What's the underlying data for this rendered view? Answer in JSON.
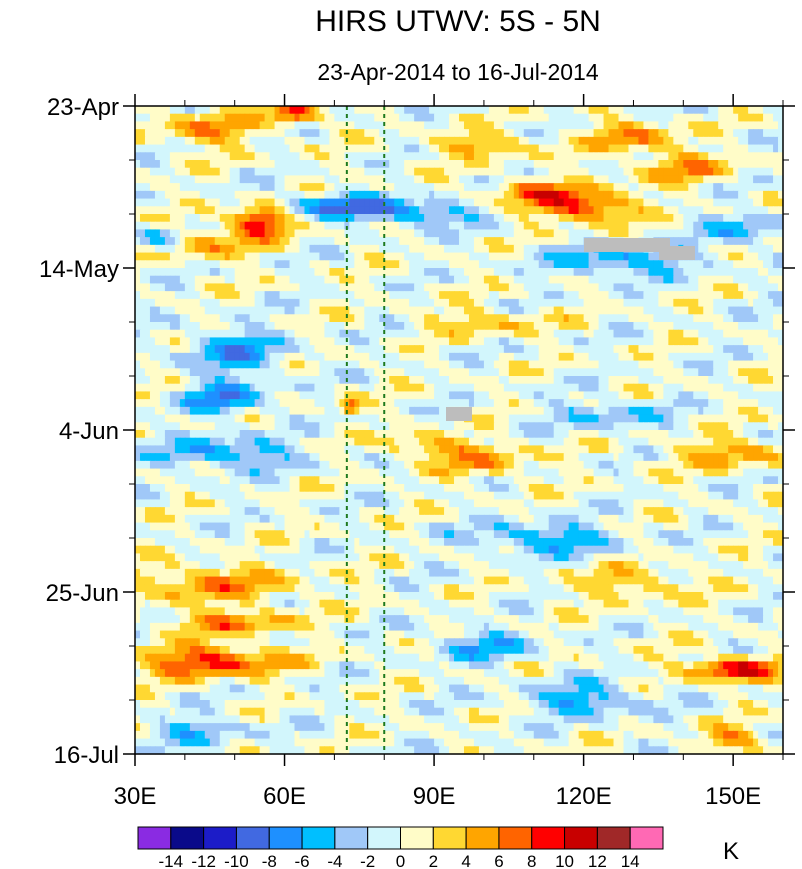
{
  "chart_data": {
    "type": "heatmap",
    "title": "HIRS UTWV: 5S - 5N",
    "subtitle": "23-Apr-2014 to 16-Jul-2014",
    "xlabel": "",
    "ylabel": "",
    "xlim": [
      30,
      160
    ],
    "ylim_days": [
      0,
      84
    ],
    "x_ticks": [
      {
        "value": 30,
        "label": "30E"
      },
      {
        "value": 60,
        "label": "60E"
      },
      {
        "value": 90,
        "label": "90E"
      },
      {
        "value": 120,
        "label": "120E"
      },
      {
        "value": 150,
        "label": "150E"
      }
    ],
    "y_ticks": [
      {
        "day": 0,
        "label": "23-Apr"
      },
      {
        "day": 21,
        "label": "14-May"
      },
      {
        "day": 42,
        "label": "4-Jun"
      },
      {
        "day": 63,
        "label": "25-Jun"
      },
      {
        "day": 84,
        "label": "16-Jul"
      }
    ],
    "reference_lines_lon": [
      72.5,
      80
    ],
    "colorbar": {
      "unit": "K",
      "levels": [
        -14,
        -12,
        -10,
        -8,
        -6,
        -4,
        -2,
        0,
        2,
        4,
        6,
        8,
        10,
        12,
        14
      ],
      "labels": [
        "-14",
        "-12",
        "-10",
        "-8",
        "-6",
        "-4",
        "-2",
        "0",
        "2",
        "4",
        "6",
        "8",
        "10",
        "12",
        "14"
      ],
      "colors": [
        "#8a2be2",
        "#0a0a8a",
        "#1c1cc8",
        "#4169e1",
        "#1e90ff",
        "#00bfff",
        "#a0c8f8",
        "#d2f6fc",
        "#fffcc8",
        "#ffd832",
        "#ffa500",
        "#ff6400",
        "#ff0000",
        "#c80000",
        "#a02828",
        "#ff69b4"
      ]
    },
    "features": [
      {
        "lon": 45,
        "day": 3,
        "anom": 6,
        "slon": 9,
        "sday": 2
      },
      {
        "lon": 62,
        "day": 1,
        "anom": 8,
        "slon": 5,
        "sday": 1.5
      },
      {
        "lon": 100,
        "day": 5,
        "anom": 5,
        "slon": 10,
        "sday": 1.5
      },
      {
        "lon": 130,
        "day": 4,
        "anom": 6,
        "slon": 8,
        "sday": 2
      },
      {
        "lon": 110,
        "day": 11,
        "anom": 6,
        "slon": 8,
        "sday": 1.5
      },
      {
        "lon": 120,
        "day": 13,
        "anom": 9,
        "slon": 10,
        "sday": 2
      },
      {
        "lon": 140,
        "day": 8,
        "anom": 5,
        "slon": 10,
        "sday": 2
      },
      {
        "lon": 55,
        "day": 15,
        "anom": 10,
        "slon": 6,
        "sday": 2
      },
      {
        "lon": 45,
        "day": 18,
        "anom": 5,
        "slon": 8,
        "sday": 2
      },
      {
        "lon": 72,
        "day": 13,
        "anom": -8,
        "slon": 12,
        "sday": 1.5
      },
      {
        "lon": 88,
        "day": 14,
        "anom": -6,
        "slon": 10,
        "sday": 1.5
      },
      {
        "lon": 35,
        "day": 17,
        "anom": -5,
        "slon": 5,
        "sday": 1.5
      },
      {
        "lon": 128,
        "day": 20,
        "anom": -6,
        "slon": 14,
        "sday": 2
      },
      {
        "lon": 152,
        "day": 16,
        "anom": -5,
        "slon": 8,
        "sday": 2
      },
      {
        "lon": 100,
        "day": 28,
        "anom": 4,
        "slon": 12,
        "sday": 1.5
      },
      {
        "lon": 50,
        "day": 32,
        "anom": -6,
        "slon": 10,
        "sday": 3
      },
      {
        "lon": 48,
        "day": 38,
        "anom": -7,
        "slon": 8,
        "sday": 2
      },
      {
        "lon": 73,
        "day": 39,
        "anom": 8,
        "slon": 2,
        "sday": 1
      },
      {
        "lon": 88,
        "day": 44,
        "anom": 5,
        "slon": 8,
        "sday": 1.5
      },
      {
        "lon": 100,
        "day": 46,
        "anom": 5,
        "slon": 10,
        "sday": 2
      },
      {
        "lon": 150,
        "day": 45,
        "anom": 5,
        "slon": 12,
        "sday": 2
      },
      {
        "lon": 125,
        "day": 40,
        "anom": -4,
        "slon": 12,
        "sday": 2
      },
      {
        "lon": 48,
        "day": 45,
        "anom": -6,
        "slon": 14,
        "sday": 2
      },
      {
        "lon": 112,
        "day": 56,
        "anom": -6,
        "slon": 14,
        "sday": 2
      },
      {
        "lon": 45,
        "day": 62,
        "anom": 5,
        "slon": 18,
        "sday": 2.5
      },
      {
        "lon": 45,
        "day": 72,
        "anom": 9,
        "slon": 14,
        "sday": 2
      },
      {
        "lon": 50,
        "day": 67,
        "anom": 6,
        "slon": 12,
        "sday": 1.5
      },
      {
        "lon": 130,
        "day": 62,
        "anom": 4,
        "slon": 12,
        "sday": 2
      },
      {
        "lon": 150,
        "day": 73,
        "anom": 10,
        "slon": 9,
        "sday": 1.5
      },
      {
        "lon": 120,
        "day": 77,
        "anom": -6,
        "slon": 12,
        "sday": 2
      },
      {
        "lon": 100,
        "day": 70,
        "anom": -5,
        "slon": 10,
        "sday": 2
      },
      {
        "lon": 150,
        "day": 82,
        "anom": 6,
        "slon": 6,
        "sday": 1.5
      },
      {
        "lon": 42,
        "day": 81,
        "anom": -4,
        "slon": 10,
        "sday": 2
      }
    ]
  }
}
